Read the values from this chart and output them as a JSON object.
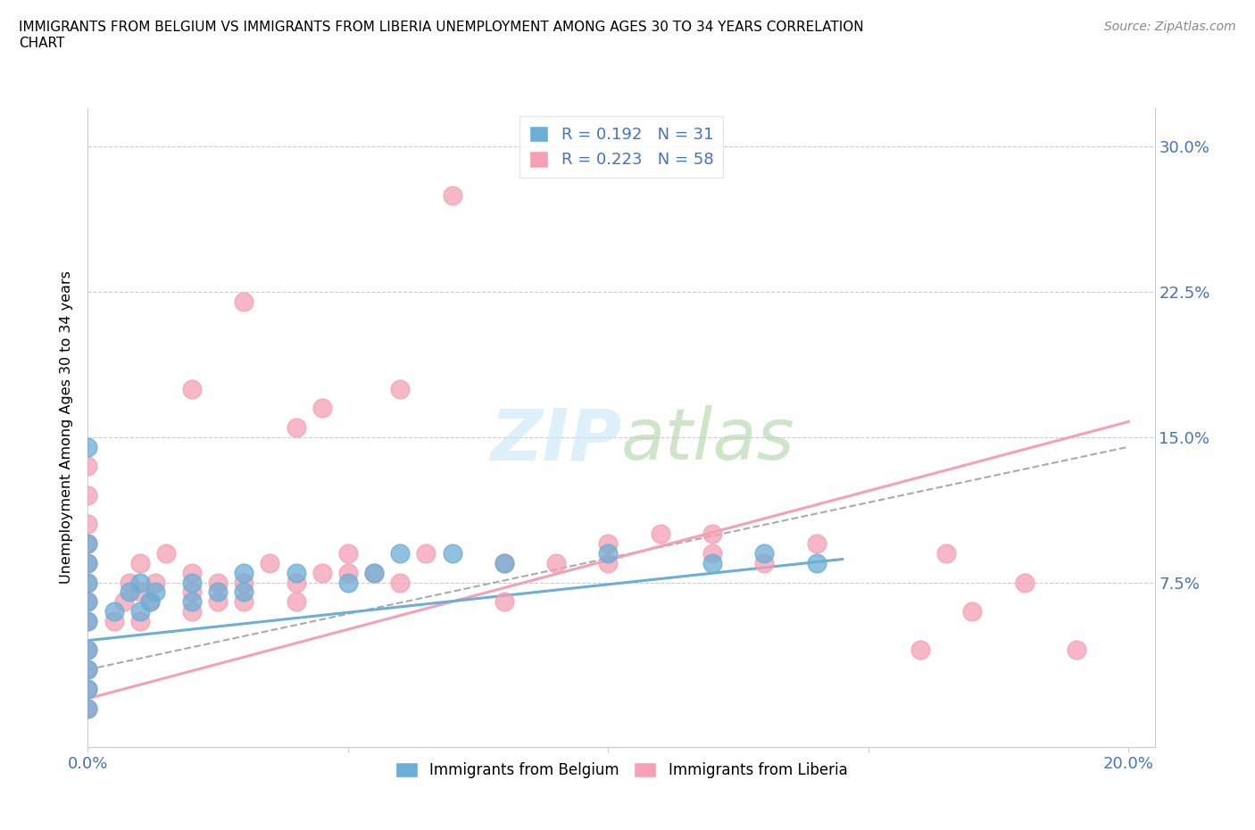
{
  "title": "IMMIGRANTS FROM BELGIUM VS IMMIGRANTS FROM LIBERIA UNEMPLOYMENT AMONG AGES 30 TO 34 YEARS CORRELATION\nCHART",
  "source": "Source: ZipAtlas.com",
  "ylabel": "Unemployment Among Ages 30 to 34 years",
  "xlim": [
    0.0,
    0.205
  ],
  "ylim": [
    -0.01,
    0.32
  ],
  "xtick_positions": [
    0.0,
    0.05,
    0.1,
    0.15,
    0.2
  ],
  "xticklabels": [
    "0.0%",
    "",
    "",
    "",
    "20.0%"
  ],
  "ytick_positions": [
    0.0,
    0.075,
    0.15,
    0.225,
    0.3
  ],
  "yticklabels": [
    "",
    "7.5%",
    "15.0%",
    "22.5%",
    "30.0%"
  ],
  "belgium_color": "#6baed6",
  "liberia_color": "#f4a0b5",
  "belgium_R": 0.192,
  "belgium_N": 31,
  "liberia_R": 0.223,
  "liberia_N": 58,
  "watermark": "ZIPatlas",
  "bel_x": [
    0.0,
    0.0,
    0.0,
    0.0,
    0.0,
    0.0,
    0.0,
    0.0,
    0.0,
    0.0,
    0.005,
    0.008,
    0.01,
    0.01,
    0.012,
    0.013,
    0.02,
    0.02,
    0.025,
    0.03,
    0.03,
    0.04,
    0.05,
    0.055,
    0.06,
    0.07,
    0.08,
    0.1,
    0.12,
    0.13,
    0.14
  ],
  "bel_y": [
    0.01,
    0.02,
    0.03,
    0.04,
    0.055,
    0.065,
    0.075,
    0.085,
    0.095,
    0.145,
    0.06,
    0.07,
    0.06,
    0.075,
    0.065,
    0.07,
    0.065,
    0.075,
    0.07,
    0.07,
    0.08,
    0.08,
    0.075,
    0.08,
    0.09,
    0.09,
    0.085,
    0.09,
    0.085,
    0.09,
    0.085
  ],
  "lib_x": [
    0.0,
    0.0,
    0.0,
    0.0,
    0.0,
    0.0,
    0.0,
    0.0,
    0.0,
    0.0,
    0.0,
    0.0,
    0.005,
    0.007,
    0.008,
    0.01,
    0.01,
    0.01,
    0.012,
    0.013,
    0.015,
    0.02,
    0.02,
    0.02,
    0.02,
    0.025,
    0.025,
    0.03,
    0.03,
    0.03,
    0.035,
    0.04,
    0.04,
    0.04,
    0.045,
    0.045,
    0.05,
    0.05,
    0.055,
    0.06,
    0.06,
    0.065,
    0.07,
    0.08,
    0.08,
    0.09,
    0.1,
    0.1,
    0.11,
    0.12,
    0.12,
    0.13,
    0.14,
    0.16,
    0.165,
    0.17,
    0.18,
    0.19
  ],
  "lib_y": [
    0.01,
    0.02,
    0.03,
    0.04,
    0.055,
    0.065,
    0.075,
    0.085,
    0.095,
    0.105,
    0.12,
    0.135,
    0.055,
    0.065,
    0.075,
    0.055,
    0.07,
    0.085,
    0.065,
    0.075,
    0.09,
    0.06,
    0.07,
    0.08,
    0.175,
    0.065,
    0.075,
    0.065,
    0.075,
    0.22,
    0.085,
    0.065,
    0.075,
    0.155,
    0.08,
    0.165,
    0.08,
    0.09,
    0.08,
    0.075,
    0.175,
    0.09,
    0.275,
    0.065,
    0.085,
    0.085,
    0.085,
    0.095,
    0.1,
    0.09,
    0.1,
    0.085,
    0.095,
    0.04,
    0.09,
    0.06,
    0.075,
    0.04
  ],
  "bel_trend_x0": 0.0,
  "bel_trend_y0": 0.045,
  "bel_trend_x1": 0.145,
  "bel_trend_y1": 0.087,
  "lib_trend_x0": 0.0,
  "lib_trend_y0": 0.015,
  "lib_trend_x1": 0.2,
  "lib_trend_y1": 0.158,
  "dash_trend_x0": 0.0,
  "dash_trend_y0": 0.03,
  "dash_trend_x1": 0.2,
  "dash_trend_y1": 0.145
}
